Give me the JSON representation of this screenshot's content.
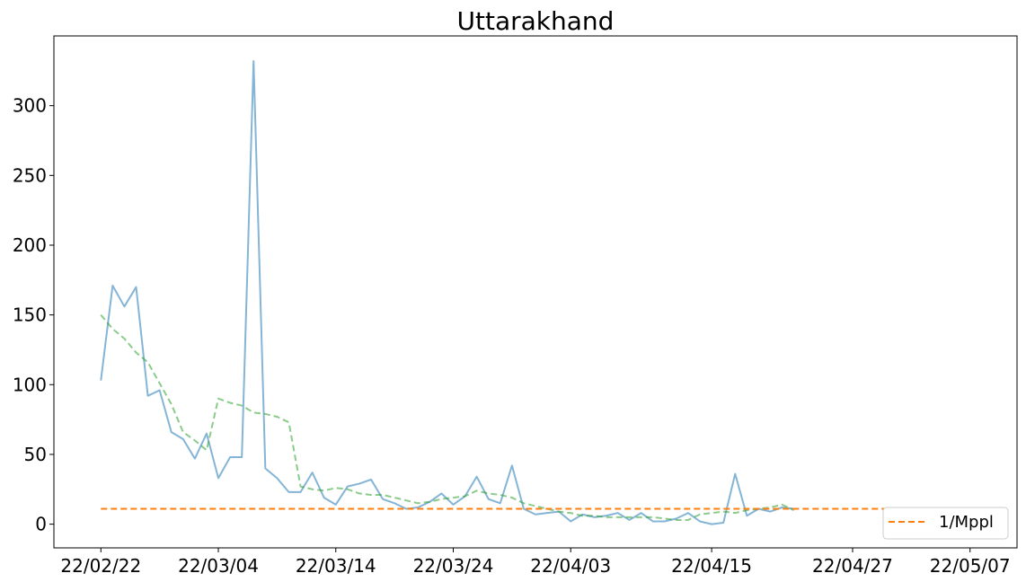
{
  "chart_data": {
    "type": "line",
    "title": "Uttarakhand",
    "xlabel": "",
    "ylabel": "",
    "x_axis": {
      "type": "date",
      "range": [
        "2022-02-18",
        "2022-05-11"
      ],
      "ticks": [
        {
          "date": "2022-02-22",
          "label": "22/02/22"
        },
        {
          "date": "2022-03-04",
          "label": "22/03/04"
        },
        {
          "date": "2022-03-14",
          "label": "22/03/14"
        },
        {
          "date": "2022-03-24",
          "label": "22/03/24"
        },
        {
          "date": "2022-04-03",
          "label": "22/04/03"
        },
        {
          "date": "2022-04-15",
          "label": "22/04/15"
        },
        {
          "date": "2022-04-27",
          "label": "22/04/27"
        },
        {
          "date": "2022-05-07",
          "label": "22/05/07"
        }
      ]
    },
    "y_axis": {
      "ylim": [
        -17,
        350
      ],
      "ticks": [
        0,
        50,
        100,
        150,
        200,
        250,
        300
      ]
    },
    "grid": false,
    "legend": {
      "placement": "bottom-right",
      "entries": [
        {
          "label": "1/Mppl",
          "color": "#ff7f0e",
          "dash": "dashed"
        }
      ]
    },
    "series": [
      {
        "color": "#1f77b4",
        "style": "solid",
        "opacity": 0.55,
        "points": [
          [
            "2022-02-22",
            103
          ],
          [
            "2022-02-23",
            171
          ],
          [
            "2022-02-24",
            156
          ],
          [
            "2022-02-25",
            170
          ],
          [
            "2022-02-26",
            92
          ],
          [
            "2022-02-27",
            96
          ],
          [
            "2022-02-28",
            66
          ],
          [
            "2022-03-01",
            61
          ],
          [
            "2022-03-02",
            47
          ],
          [
            "2022-03-03",
            65
          ],
          [
            "2022-03-04",
            33
          ],
          [
            "2022-03-05",
            48
          ],
          [
            "2022-03-06",
            48
          ],
          [
            "2022-03-07",
            332
          ],
          [
            "2022-03-08",
            40
          ],
          [
            "2022-03-09",
            33
          ],
          [
            "2022-03-10",
            23
          ],
          [
            "2022-03-11",
            23
          ],
          [
            "2022-03-12",
            37
          ],
          [
            "2022-03-13",
            19
          ],
          [
            "2022-03-14",
            14
          ],
          [
            "2022-03-15",
            27
          ],
          [
            "2022-03-16",
            29
          ],
          [
            "2022-03-17",
            32
          ],
          [
            "2022-03-18",
            18
          ],
          [
            "2022-03-19",
            15
          ],
          [
            "2022-03-20",
            11
          ],
          [
            "2022-03-21",
            12
          ],
          [
            "2022-03-22",
            16
          ],
          [
            "2022-03-23",
            22
          ],
          [
            "2022-03-24",
            14
          ],
          [
            "2022-03-25",
            20
          ],
          [
            "2022-03-26",
            34
          ],
          [
            "2022-03-27",
            18
          ],
          [
            "2022-03-28",
            15
          ],
          [
            "2022-03-29",
            42
          ],
          [
            "2022-03-30",
            11
          ],
          [
            "2022-03-31",
            7
          ],
          [
            "2022-04-01",
            8
          ],
          [
            "2022-04-02",
            9
          ],
          [
            "2022-04-03",
            2
          ],
          [
            "2022-04-04",
            7
          ],
          [
            "2022-04-05",
            5
          ],
          [
            "2022-04-06",
            6
          ],
          [
            "2022-04-07",
            8
          ],
          [
            "2022-04-08",
            3
          ],
          [
            "2022-04-09",
            8
          ],
          [
            "2022-04-10",
            2
          ],
          [
            "2022-04-11",
            2
          ],
          [
            "2022-04-12",
            4
          ],
          [
            "2022-04-13",
            8
          ],
          [
            "2022-04-14",
            2
          ],
          [
            "2022-04-15",
            0
          ],
          [
            "2022-04-16",
            1
          ],
          [
            "2022-04-17",
            36
          ],
          [
            "2022-04-18",
            6
          ],
          [
            "2022-04-19",
            11
          ],
          [
            "2022-04-20",
            9
          ],
          [
            "2022-04-21",
            12
          ],
          [
            "2022-04-22",
            11
          ]
        ]
      },
      {
        "color": "#2ca02c",
        "style": "dashed",
        "opacity": 0.55,
        "points": [
          [
            "2022-02-22",
            150
          ],
          [
            "2022-02-23",
            140
          ],
          [
            "2022-02-24",
            133
          ],
          [
            "2022-02-25",
            123
          ],
          [
            "2022-02-26",
            116
          ],
          [
            "2022-02-27",
            101
          ],
          [
            "2022-02-28",
            86
          ],
          [
            "2022-03-01",
            66
          ],
          [
            "2022-03-02",
            60
          ],
          [
            "2022-03-03",
            53
          ],
          [
            "2022-03-04",
            90
          ],
          [
            "2022-03-05",
            87
          ],
          [
            "2022-03-06",
            85
          ],
          [
            "2022-03-07",
            80
          ],
          [
            "2022-03-08",
            79
          ],
          [
            "2022-03-09",
            77
          ],
          [
            "2022-03-10",
            73
          ],
          [
            "2022-03-11",
            27
          ],
          [
            "2022-03-12",
            25
          ],
          [
            "2022-03-13",
            24
          ],
          [
            "2022-03-14",
            26
          ],
          [
            "2022-03-15",
            25
          ],
          [
            "2022-03-16",
            22
          ],
          [
            "2022-03-17",
            21
          ],
          [
            "2022-03-18",
            21
          ],
          [
            "2022-03-19",
            19
          ],
          [
            "2022-03-20",
            17
          ],
          [
            "2022-03-21",
            15
          ],
          [
            "2022-03-22",
            16
          ],
          [
            "2022-03-23",
            18
          ],
          [
            "2022-03-24",
            19
          ],
          [
            "2022-03-25",
            20
          ],
          [
            "2022-03-26",
            24
          ],
          [
            "2022-03-27",
            22
          ],
          [
            "2022-03-28",
            21
          ],
          [
            "2022-03-29",
            19
          ],
          [
            "2022-03-30",
            15
          ],
          [
            "2022-03-31",
            13
          ],
          [
            "2022-04-01",
            11
          ],
          [
            "2022-04-02",
            9
          ],
          [
            "2022-04-03",
            8
          ],
          [
            "2022-04-04",
            6
          ],
          [
            "2022-04-05",
            6
          ],
          [
            "2022-04-06",
            5
          ],
          [
            "2022-04-07",
            5
          ],
          [
            "2022-04-08",
            5
          ],
          [
            "2022-04-09",
            5
          ],
          [
            "2022-04-10",
            5
          ],
          [
            "2022-04-11",
            4
          ],
          [
            "2022-04-12",
            3
          ],
          [
            "2022-04-13",
            3
          ],
          [
            "2022-04-14",
            7
          ],
          [
            "2022-04-15",
            8
          ],
          [
            "2022-04-16",
            9
          ],
          [
            "2022-04-17",
            8
          ],
          [
            "2022-04-18",
            10
          ],
          [
            "2022-04-19",
            11
          ],
          [
            "2022-04-20",
            12
          ],
          [
            "2022-04-21",
            14
          ],
          [
            "2022-04-22",
            10
          ]
        ]
      },
      {
        "name": "1/Mppl",
        "color": "#ff7f0e",
        "style": "dashed",
        "opacity": 1,
        "points": [
          [
            "2022-02-22",
            11
          ],
          [
            "2022-05-07",
            11
          ]
        ]
      }
    ]
  }
}
